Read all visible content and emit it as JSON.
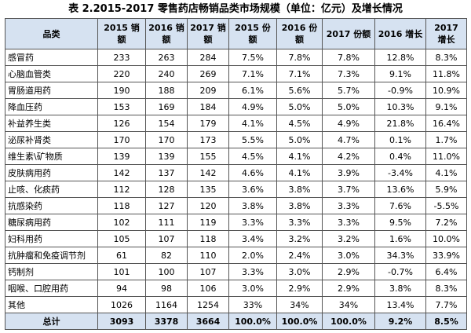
{
  "title": "表 2.2015-2017 零售药店畅销品类市场规模（单位：亿元）及增长情况",
  "table": {
    "header": [
      "品类",
      "2015 销额",
      "2016 销额",
      "2017 销额",
      "2015 份额",
      "2016 份额",
      "2017 份额",
      "2016 增长",
      "2017 增长"
    ],
    "rows": [
      [
        "感冒药",
        "233",
        "263",
        "284",
        "7.5%",
        "7.8%",
        "7.8%",
        "12.8%",
        "8.3%"
      ],
      [
        "心脑血管类",
        "220",
        "240",
        "269",
        "7.1%",
        "7.1%",
        "7.3%",
        "9.1%",
        "11.8%"
      ],
      [
        "胃肠道用药",
        "190",
        "188",
        "209",
        "6.1%",
        "5.6%",
        "5.7%",
        "-0.9%",
        "10.9%"
      ],
      [
        "降血压药",
        "153",
        "169",
        "184",
        "4.9%",
        "5.0%",
        "5.0%",
        "10.3%",
        "9.1%"
      ],
      [
        "补益养生类",
        "126",
        "154",
        "179",
        "4.1%",
        "4.5%",
        "4.9%",
        "21.8%",
        "16.4%"
      ],
      [
        "泌尿补肾类",
        "170",
        "170",
        "173",
        "5.5%",
        "5.0%",
        "4.7%",
        "0.1%",
        "1.7%"
      ],
      [
        "维生素\\矿物质",
        "139",
        "139",
        "155",
        "4.5%",
        "4.1%",
        "4.2%",
        "0.4%",
        "11.0%"
      ],
      [
        "皮肤病用药",
        "142",
        "137",
        "142",
        "4.6%",
        "4.1%",
        "3.9%",
        "-3.4%",
        "4.1%"
      ],
      [
        "止咳、化痰药",
        "112",
        "128",
        "135",
        "3.6%",
        "3.8%",
        "3.7%",
        "13.6%",
        "5.9%"
      ],
      [
        "抗感染药",
        "118",
        "127",
        "120",
        "3.8%",
        "3.8%",
        "3.3%",
        "7.6%",
        "-5.5%"
      ],
      [
        "糖尿病用药",
        "102",
        "111",
        "119",
        "3.3%",
        "3.3%",
        "3.3%",
        "9.5%",
        "7.2%"
      ],
      [
        "妇科用药",
        "105",
        "107",
        "118",
        "3.4%",
        "3.2%",
        "3.2%",
        "1.6%",
        "10.0%"
      ],
      [
        "抗肿瘤和免疫调节剂",
        "61",
        "82",
        "110",
        "2.0%",
        "2.4%",
        "3.0%",
        "34.3%",
        "33.9%"
      ],
      [
        "钙制剂",
        "101",
        "100",
        "107",
        "3.3%",
        "3.0%",
        "2.9%",
        "-0.7%",
        "6.4%"
      ],
      [
        "咽喉、口腔用药",
        "94",
        "98",
        "106",
        "3.0%",
        "2.9%",
        "2.9%",
        "3.8%",
        "8.3%"
      ],
      [
        "其他",
        "1026",
        "1164",
        "1254",
        "33%",
        "34%",
        "34%",
        "13.4%",
        "7.7%"
      ]
    ],
    "total": [
      "总计",
      "3093",
      "3378",
      "3664",
      "100.0%",
      "100.0%",
      "100.0%",
      "9.2%",
      "8.5%"
    ]
  }
}
